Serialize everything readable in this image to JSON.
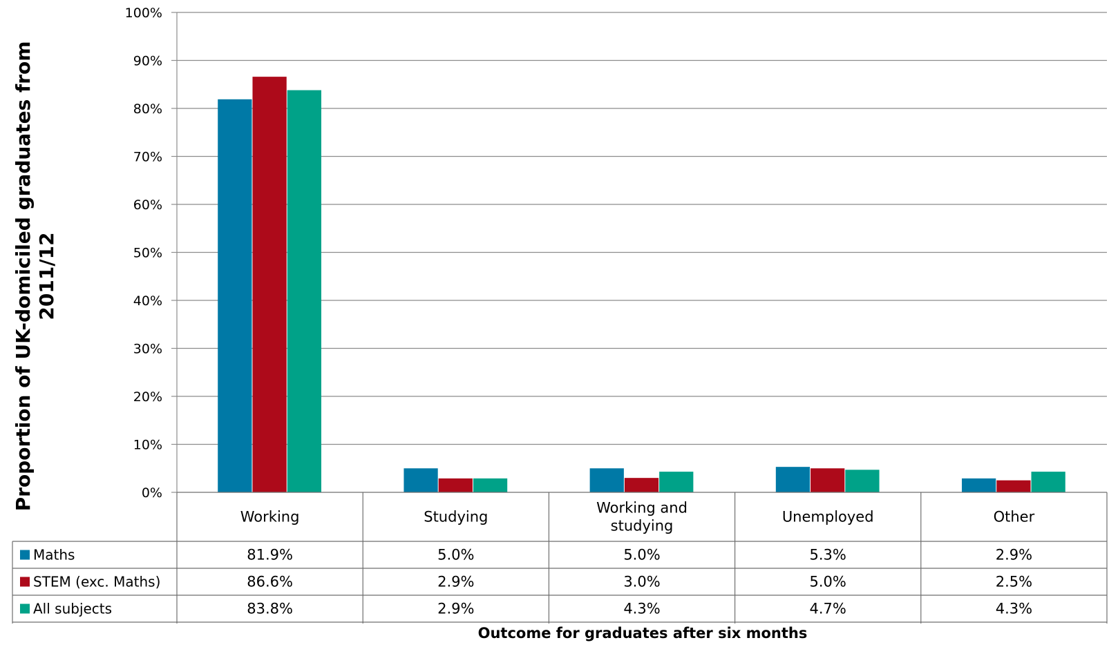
{
  "chart_data": {
    "type": "bar",
    "ylabel_lines": [
      "Proportion of UK-domiciled graduates from",
      "2011/12"
    ],
    "xlabel": "Outcome for graduates after six months",
    "ylim": [
      0,
      100
    ],
    "yticks": [
      "0%",
      "10%",
      "20%",
      "30%",
      "40%",
      "50%",
      "60%",
      "70%",
      "80%",
      "90%",
      "100%"
    ],
    "grid": true,
    "categories": [
      [
        "Working"
      ],
      [
        "Studying"
      ],
      [
        "Working and",
        "studying"
      ],
      [
        "Unemployed"
      ],
      [
        "Other"
      ]
    ],
    "series": [
      {
        "name": "Maths",
        "color": "#0079a6",
        "values": [
          81.9,
          5.0,
          5.0,
          5.3,
          2.9
        ],
        "labels": [
          "81.9%",
          "5.0%",
          "5.0%",
          "5.3%",
          "2.9%"
        ]
      },
      {
        "name": "STEM (exc. Maths)",
        "color": "#ad0a1a",
        "values": [
          86.6,
          2.9,
          3.0,
          5.0,
          2.5
        ],
        "labels": [
          "86.6%",
          "2.9%",
          "3.0%",
          "5.0%",
          "2.5%"
        ]
      },
      {
        "name": "All subjects",
        "color": "#00a288",
        "values": [
          83.8,
          2.9,
          4.3,
          4.7,
          4.3
        ],
        "labels": [
          "83.8%",
          "2.9%",
          "4.3%",
          "4.7%",
          "4.3%"
        ]
      }
    ]
  }
}
